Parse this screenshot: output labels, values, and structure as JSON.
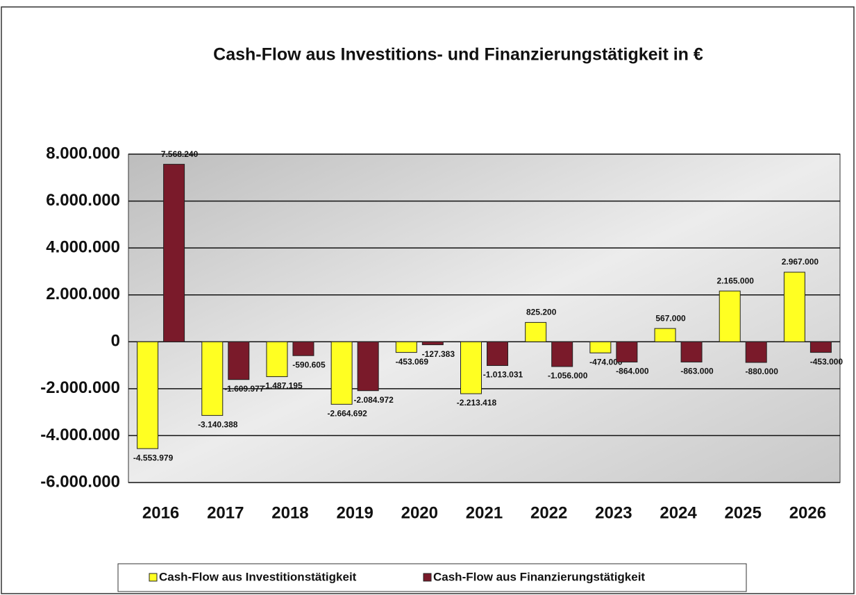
{
  "chart_data": {
    "type": "bar",
    "title": "Cash-Flow aus Investitions- und Finanzierungstätigkeit in €",
    "categories": [
      "2016",
      "2017",
      "2018",
      "2019",
      "2020",
      "2021",
      "2022",
      "2023",
      "2024",
      "2025",
      "2026"
    ],
    "series": [
      {
        "name": "Cash-Flow aus Investitionstätigkeit",
        "color": "#ffff22",
        "values": [
          -4553979,
          -3140388,
          -1487195,
          -2664692,
          -453069,
          -2213418,
          825200,
          -474000,
          567000,
          2165000,
          2967000
        ],
        "value_labels": [
          "-4.553.979",
          "-3.140.388",
          "-1.487.195",
          "-2.664.692",
          "-453.069",
          "-2.213.418",
          "825.200",
          "-474.000",
          "567.000",
          "2.165.000",
          "2.967.000"
        ]
      },
      {
        "name": "Cash-Flow aus Finanzierungstätigkeit",
        "color": "#7a1a2a",
        "values": [
          7568240,
          -1609977,
          -590605,
          -2084972,
          -127383,
          -1013031,
          -1056000,
          -864000,
          -863000,
          -880000,
          -453000
        ],
        "value_labels": [
          "7.568.240",
          "-1.609.977",
          "-590.605",
          "-2.084.972",
          "-127.383",
          "-1.013.031",
          "-1.056.000",
          "-864.000",
          "-863.000",
          "-880.000",
          "-453.000"
        ]
      }
    ],
    "ylim": [
      -6000000,
      8000000
    ],
    "yticks": [
      {
        "value": -6000000,
        "label": "-6.000.000"
      },
      {
        "value": -4000000,
        "label": "-4.000.000"
      },
      {
        "value": -2000000,
        "label": "-2.000.000"
      },
      0,
      {
        "value": 2000000,
        "label": "2.000.000"
      },
      {
        "value": 4000000,
        "label": "4.000.000"
      },
      {
        "value": 6000000,
        "label": "6.000.000"
      },
      {
        "value": 8000000,
        "label": "8.000.000"
      }
    ],
    "grid": true,
    "legend": "bottom"
  }
}
